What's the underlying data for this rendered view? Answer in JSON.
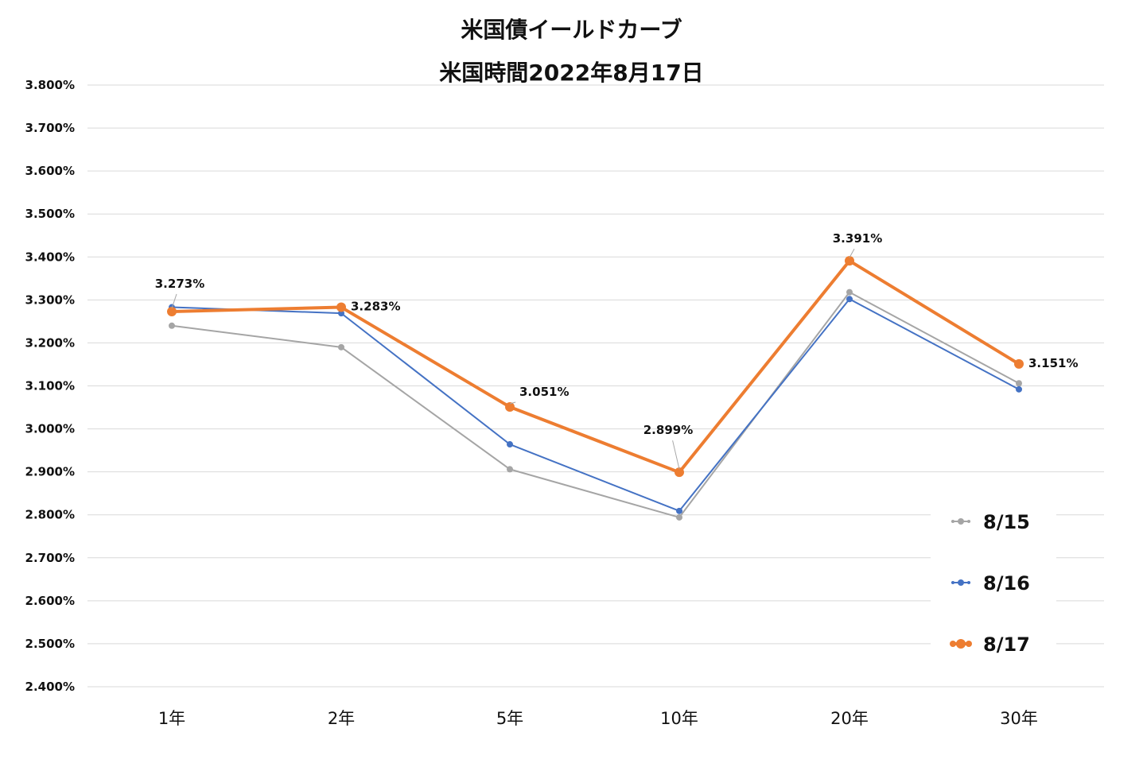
{
  "chart_data": {
    "type": "line",
    "title": "米国債イールドカーブ",
    "subtitle": "米国時間2022年8月17日",
    "categories": [
      "1年",
      "2年",
      "5年",
      "10年",
      "20年",
      "30年"
    ],
    "ylim": [
      2.4,
      3.8
    ],
    "ytick_step": 0.1,
    "ytick_format": "%.3f%",
    "grid": true,
    "legend_position": "bottom-right",
    "series": [
      {
        "name": "8/15",
        "color": "#A5A5A5",
        "values": [
          3.24,
          3.19,
          2.906,
          2.794,
          3.318,
          3.106
        ]
      },
      {
        "name": "8/16",
        "color": "#4472C4",
        "values": [
          3.283,
          3.269,
          2.964,
          2.809,
          3.302,
          3.092
        ]
      },
      {
        "name": "8/17",
        "color": "#ED7D31",
        "values": [
          3.273,
          3.283,
          3.051,
          2.899,
          3.391,
          3.151
        ]
      }
    ],
    "data_labels": [
      {
        "series": 2,
        "index": 0,
        "text": "3.273%"
      },
      {
        "series": 2,
        "index": 1,
        "text": "3.283%"
      },
      {
        "series": 2,
        "index": 2,
        "text": "3.051%"
      },
      {
        "series": 2,
        "index": 3,
        "text": "2.899%"
      },
      {
        "series": 2,
        "index": 4,
        "text": "3.391%"
      },
      {
        "series": 2,
        "index": 5,
        "text": "3.151%"
      }
    ]
  }
}
